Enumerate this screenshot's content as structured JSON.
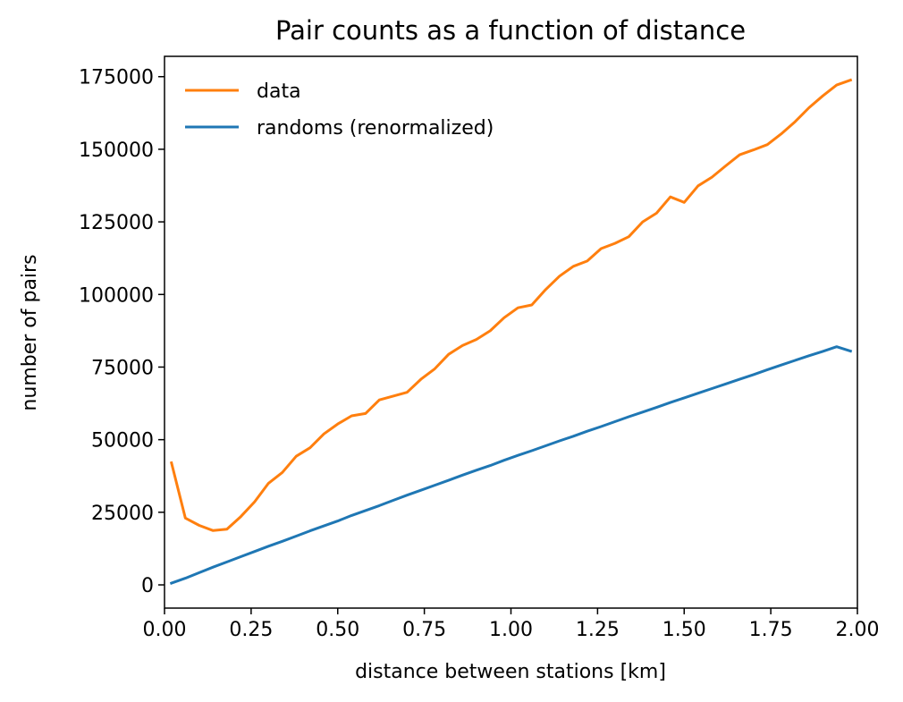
{
  "chart_data": {
    "type": "line",
    "title": "Pair counts as a function of distance",
    "xlabel": "distance between stations [km]",
    "ylabel": "number of pairs",
    "xlim": [
      0.0,
      2.0
    ],
    "ylim": [
      -8000,
      182000
    ],
    "xticks": [
      0.0,
      0.25,
      0.5,
      0.75,
      1.0,
      1.25,
      1.5,
      1.75,
      2.0
    ],
    "xtick_labels": [
      "0.00",
      "0.25",
      "0.50",
      "0.75",
      "1.00",
      "1.25",
      "1.50",
      "1.75",
      "2.00"
    ],
    "yticks": [
      0,
      25000,
      50000,
      75000,
      100000,
      125000,
      150000,
      175000
    ],
    "ytick_labels": [
      "0",
      "25000",
      "50000",
      "75000",
      "100000",
      "125000",
      "150000",
      "175000"
    ],
    "grid": false,
    "legend_position": "top-left",
    "series": [
      {
        "name": "data",
        "color": "#ff7f0e",
        "x": [
          0.02,
          0.06,
          0.1,
          0.14,
          0.18,
          0.22,
          0.26,
          0.3,
          0.34,
          0.38,
          0.42,
          0.46,
          0.5,
          0.54,
          0.58,
          0.62,
          0.66,
          0.7,
          0.74,
          0.78,
          0.82,
          0.86,
          0.9,
          0.94,
          0.98,
          1.02,
          1.06,
          1.1,
          1.14,
          1.18,
          1.22,
          1.26,
          1.3,
          1.34,
          1.38,
          1.42,
          1.46,
          1.5,
          1.54,
          1.58,
          1.62,
          1.66,
          1.7,
          1.74,
          1.78,
          1.82,
          1.86,
          1.9,
          1.94,
          1.98
        ],
        "values": [
          42000,
          23000,
          20500,
          18700,
          19200,
          23500,
          28600,
          35000,
          38700,
          44300,
          47200,
          52000,
          55400,
          58200,
          59000,
          63700,
          65000,
          66300,
          70800,
          74400,
          79400,
          82400,
          84500,
          87500,
          92000,
          95400,
          96400,
          101700,
          106300,
          109700,
          111500,
          115800,
          117600,
          119900,
          125000,
          128000,
          133600,
          131700,
          137400,
          140400,
          144300,
          148100,
          149800,
          151600,
          155300,
          159500,
          164300,
          168400,
          172100,
          173800
        ]
      },
      {
        "name": "randoms (renormalized)",
        "color": "#1f77b4",
        "x": [
          0.02,
          0.06,
          0.1,
          0.14,
          0.18,
          0.22,
          0.26,
          0.3,
          0.34,
          0.38,
          0.42,
          0.46,
          0.5,
          0.54,
          0.58,
          0.62,
          0.66,
          0.7,
          0.74,
          0.78,
          0.82,
          0.86,
          0.9,
          0.94,
          0.98,
          1.02,
          1.06,
          1.1,
          1.14,
          1.18,
          1.22,
          1.26,
          1.3,
          1.34,
          1.38,
          1.42,
          1.46,
          1.5,
          1.54,
          1.58,
          1.62,
          1.66,
          1.7,
          1.74,
          1.78,
          1.82,
          1.86,
          1.9,
          1.94,
          1.98
        ],
        "values": [
          600,
          2300,
          4200,
          6100,
          7900,
          9700,
          11500,
          13300,
          15000,
          16800,
          18600,
          20300,
          22000,
          23900,
          25600,
          27300,
          29100,
          30900,
          32600,
          34300,
          36000,
          37800,
          39500,
          41100,
          42900,
          44600,
          46200,
          47900,
          49600,
          51200,
          52900,
          54500,
          56200,
          57900,
          59500,
          61100,
          62800,
          64400,
          66000,
          67600,
          69200,
          70800,
          72400,
          74100,
          75700,
          77300,
          78900,
          80400,
          82000,
          80500
        ]
      }
    ]
  }
}
